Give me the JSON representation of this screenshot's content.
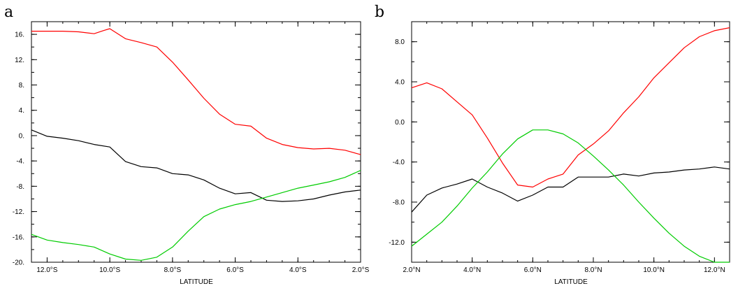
{
  "chart_data": [
    {
      "type": "line",
      "panel": "a",
      "xlabel": "LATITUDE",
      "ylabel": "",
      "xlim": [
        -12.5,
        -2.0
      ],
      "ylim": [
        -20,
        18
      ],
      "xticks": [
        -12,
        -10,
        -8,
        -6,
        -4,
        -2
      ],
      "xtick_labels": [
        "12.0°S",
        "10.0°S",
        "8.0°S",
        "6.0°S",
        "4.0°S",
        "2.0°S"
      ],
      "yticks": [
        16,
        12,
        8,
        4,
        0,
        -4,
        -8,
        -12,
        -16,
        -20
      ],
      "ytick_labels": [
        "16.",
        "12.",
        "8.",
        "4.",
        "0.",
        "-4.",
        "-8.",
        "-12.",
        "-16.",
        "-20."
      ],
      "series": [
        {
          "color": "#ff0000",
          "x": [
            -12.5,
            -12,
            -11.5,
            -11,
            -10.5,
            -10.2,
            -10,
            -9.5,
            -9,
            -8.5,
            -8,
            -7.5,
            -7,
            -6.5,
            -6,
            -5.5,
            -5,
            -4.5,
            -4,
            -3.5,
            -3,
            -2.5,
            -2
          ],
          "y": [
            16.5,
            16.5,
            16.5,
            16.4,
            16.1,
            16.6,
            16.9,
            15.3,
            14.7,
            14.0,
            11.6,
            8.8,
            5.9,
            3.4,
            1.8,
            1.5,
            -0.4,
            -1.4,
            -1.9,
            -2.1,
            -2.0,
            -2.3,
            -3.0
          ]
        },
        {
          "color": "#000000",
          "x": [
            -12.5,
            -12,
            -11.5,
            -11,
            -10.5,
            -10,
            -9.5,
            -9,
            -8.5,
            -8,
            -7.5,
            -7,
            -6.5,
            -6,
            -5.5,
            -5,
            -4.5,
            -4,
            -3.5,
            -3,
            -2.5,
            -2
          ],
          "y": [
            0.9,
            -0.1,
            -0.4,
            -0.8,
            -1.4,
            -1.8,
            -4.1,
            -4.9,
            -5.1,
            -6.0,
            -6.2,
            -7.0,
            -8.3,
            -9.2,
            -9.0,
            -10.2,
            -10.4,
            -10.3,
            -10.0,
            -9.4,
            -8.9,
            -8.6
          ]
        },
        {
          "color": "#00cc00",
          "x": [
            -12.5,
            -12,
            -11.5,
            -11,
            -10.5,
            -10,
            -9.5,
            -9,
            -8.5,
            -8,
            -7.5,
            -7,
            -6.5,
            -6,
            -5.5,
            -5,
            -4.5,
            -4,
            -3.5,
            -3,
            -2.5,
            -2
          ],
          "y": [
            -15.6,
            -16.5,
            -16.9,
            -17.2,
            -17.6,
            -18.7,
            -19.5,
            -19.7,
            -19.2,
            -17.6,
            -15.1,
            -12.8,
            -11.6,
            -10.9,
            -10.4,
            -9.7,
            -9.0,
            -8.3,
            -7.8,
            -7.3,
            -6.6,
            -5.5
          ]
        }
      ]
    },
    {
      "type": "line",
      "panel": "b",
      "xlabel": "LATITUDE",
      "ylabel": "",
      "xlim": [
        2.0,
        12.5
      ],
      "ylim": [
        -14,
        10
      ],
      "xticks": [
        2,
        4,
        6,
        8,
        10,
        12
      ],
      "xtick_labels": [
        "2.0°N",
        "4.0°N",
        "6.0°N",
        "8.0°N",
        "10.0°N",
        "12.0°N"
      ],
      "yticks": [
        8,
        4,
        0,
        -4,
        -8,
        -12
      ],
      "ytick_labels": [
        "8.0",
        "4.0",
        "0.0",
        "-4.0",
        "-8.0",
        "-12.0"
      ],
      "series": [
        {
          "color": "#ff0000",
          "x": [
            2,
            2.5,
            3,
            3.5,
            4,
            4.5,
            5,
            5.5,
            6,
            6.5,
            7,
            7.5,
            8,
            8.5,
            9,
            9.5,
            10,
            10.5,
            11,
            11.5,
            12,
            12.5
          ],
          "y": [
            3.4,
            3.9,
            3.3,
            2.0,
            0.7,
            -1.6,
            -4.1,
            -6.3,
            -6.5,
            -5.7,
            -5.2,
            -3.3,
            -2.2,
            -0.9,
            0.9,
            2.5,
            4.4,
            5.9,
            7.4,
            8.5,
            9.1,
            9.4
          ]
        },
        {
          "color": "#000000",
          "x": [
            2,
            2.5,
            3,
            3.5,
            4,
            4.5,
            5,
            5.5,
            6,
            6.5,
            7,
            7.5,
            8,
            8.5,
            9,
            9.5,
            10,
            10.5,
            11,
            11.5,
            12,
            12.5
          ],
          "y": [
            -9.0,
            -7.3,
            -6.6,
            -6.2,
            -5.7,
            -6.5,
            -7.1,
            -7.9,
            -7.3,
            -6.5,
            -6.5,
            -5.5,
            -5.5,
            -5.5,
            -5.2,
            -5.4,
            -5.1,
            -5.0,
            -4.8,
            -4.7,
            -4.5,
            -4.7
          ]
        },
        {
          "color": "#00cc00",
          "x": [
            2,
            2.5,
            3,
            3.5,
            4,
            4.5,
            5,
            5.5,
            6,
            6.5,
            7,
            7.5,
            8,
            8.5,
            9,
            9.5,
            10,
            10.5,
            11,
            11.5,
            12,
            12.5
          ],
          "y": [
            -12.4,
            -11.2,
            -10.0,
            -8.4,
            -6.6,
            -5.0,
            -3.2,
            -1.7,
            -0.8,
            -0.8,
            -1.2,
            -2.1,
            -3.4,
            -4.8,
            -6.3,
            -8.0,
            -9.6,
            -11.1,
            -12.4,
            -13.4,
            -14.0,
            -14.0
          ]
        }
      ]
    }
  ]
}
